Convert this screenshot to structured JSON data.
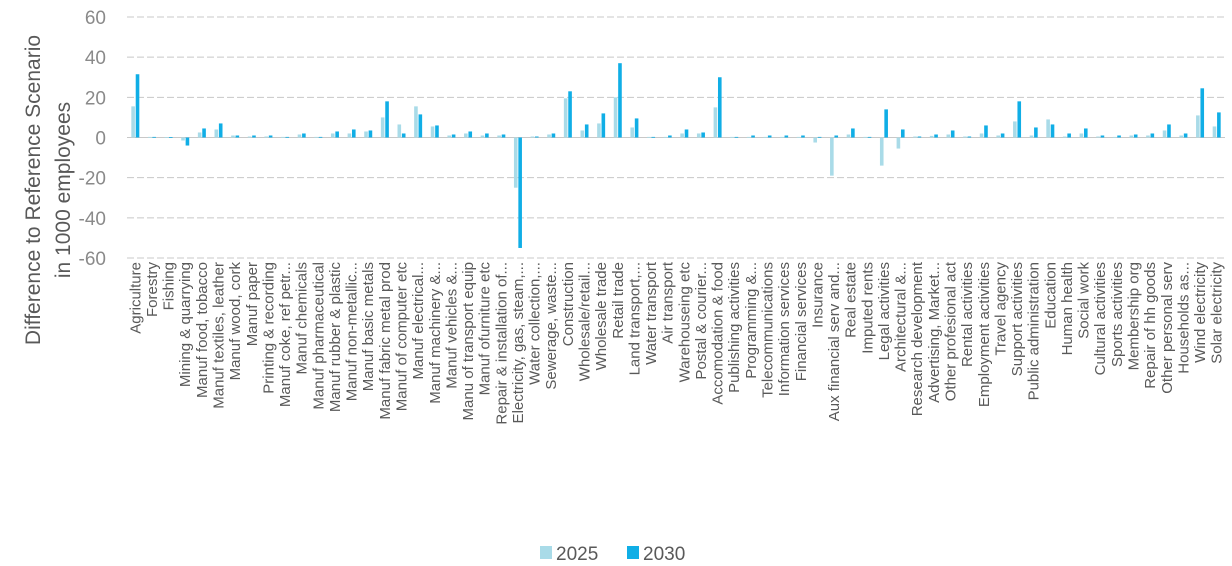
{
  "chart_data": {
    "type": "bar",
    "ylabel": "Difference to Reference Scenario in 1000 employees",
    "ylabel_lines": [
      "Difference to Reference Scenario",
      "in 1000 employees"
    ],
    "ylim": [
      -60,
      60
    ],
    "yticks": [
      60,
      40,
      20,
      0,
      -20,
      -40,
      -60
    ],
    "grid": true,
    "legend_position": "bottom",
    "categories": [
      "Agriculture",
      "Forestry",
      "Fishing",
      "Mining & quarrying",
      "Manuf food, tobacco",
      "Manuf textiles, leather",
      "Manuf wood, cork",
      "Manuf paper",
      "Printing & recording",
      "Manuf coke, ref petr...",
      "Manuf chemicals",
      "Manuf pharmaceutical",
      "Manuf rubber & plastic",
      "Manuf non-metallic...",
      "Manuf basic metals",
      "Manuf fabric metal prod",
      "Manuf of computer etc",
      "Manuf electrical...",
      "Manuf machinery &...",
      "Manuf vehicles &...",
      "Manu of transport equip",
      "Manuf ofurniture etc",
      "Repair & installation of...",
      "Electricity, gas, steam,...",
      "Water collection,...",
      "Sewerage, waste...",
      "Construction",
      "Wholesale/retail...",
      "Wholesale trade",
      "Retail trade",
      "Land transport,...",
      "Water transport",
      "Air transport",
      "Warehouseing etc",
      "Postal & courier...",
      "Accomodation & food",
      "Publishing activities",
      "Programming &...",
      "Telecommunications",
      "Information services",
      "Financial services",
      "Insurance",
      "Aux financial serv and...",
      "Real estate",
      "Imputed rents",
      "Legal activities",
      "Architectural &...",
      "Research development",
      "Advertising, Market...",
      "Other profesional act",
      "Rental activities",
      "Employment activities",
      "Travel agency",
      "Support activities",
      "Public administration",
      "Education",
      "Human health",
      "Social work",
      "Cultural activities",
      "Sports activities",
      "Membership org",
      "Repair of hh goods",
      "Other personal serv",
      "Households as...",
      "Wind electricity",
      "Solar electricity"
    ],
    "series": [
      {
        "name": "2025",
        "color": "#a9dbe8",
        "values": [
          15.5,
          0.3,
          0.2,
          -1.5,
          2.5,
          4,
          1,
          0.5,
          0.5,
          0.3,
          1.5,
          0.3,
          2,
          2,
          3,
          10,
          6.5,
          15.5,
          5.5,
          1,
          2,
          1,
          1,
          -25,
          0.5,
          1.5,
          19.5,
          3.5,
          7,
          20,
          5,
          0.3,
          0.3,
          2,
          2,
          15,
          0.3,
          0.3,
          0.3,
          0.3,
          0.3,
          -2.5,
          -19,
          1.5,
          0.3,
          -14,
          -5.5,
          0.5,
          0.8,
          1.5,
          0.5,
          2,
          1,
          8,
          1,
          9,
          0.5,
          2,
          0.5,
          0.3,
          1,
          1,
          3.5,
          1,
          11,
          5.5
        ]
      },
      {
        "name": "2030",
        "color": "#10aee6",
        "values": [
          31.5,
          0.3,
          0.2,
          -4,
          4.5,
          7,
          1,
          1,
          1,
          0.3,
          2,
          0.3,
          3,
          4,
          3.5,
          18,
          2,
          11.5,
          6,
          1.5,
          3,
          2,
          1.5,
          -55,
          0.5,
          2,
          23,
          6.5,
          12,
          37,
          9.5,
          0.3,
          1,
          4,
          2.5,
          30,
          0.3,
          1,
          1,
          1,
          1,
          0.3,
          1,
          4.5,
          0.3,
          14,
          4,
          0.5,
          1.5,
          3.5,
          0.5,
          6,
          2,
          18,
          5,
          6.5,
          2,
          4.5,
          1,
          1,
          1.5,
          2,
          6.5,
          2,
          24.5,
          12.5
        ]
      }
    ]
  }
}
